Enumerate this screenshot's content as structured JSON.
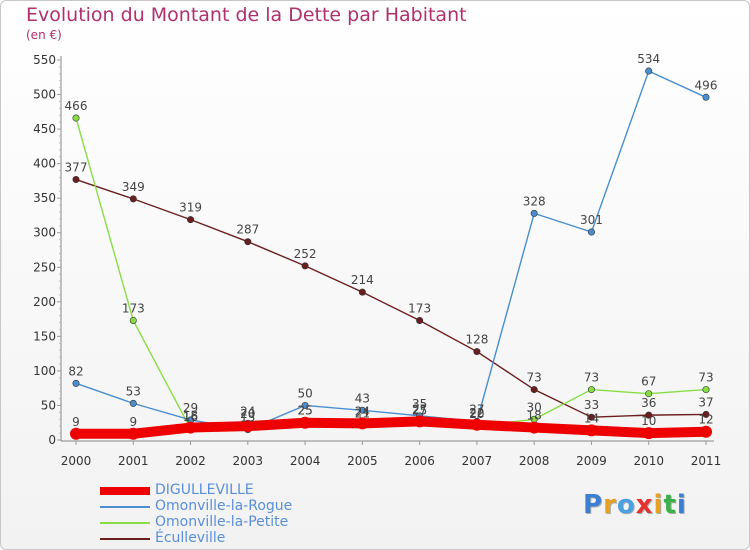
{
  "chart_data": {
    "type": "line",
    "title": "Evolution du Montant de la Dette par Habitant",
    "subtitle": "(en €)",
    "xlabel": "",
    "ylabel": "",
    "ylim": [
      0,
      550
    ],
    "yticks": [
      "0",
      "50",
      "100",
      "150",
      "200",
      "250",
      "300",
      "350",
      "400",
      "450",
      "500",
      "550"
    ],
    "categories": [
      "2000",
      "2001",
      "2002",
      "2003",
      "2004",
      "2005",
      "2006",
      "2007",
      "2008",
      "2009",
      "2010",
      "2011"
    ],
    "grid": false,
    "legend_position": "bottom-left",
    "series": [
      {
        "name": "DIGULLEVILLE",
        "color": "#ee0000",
        "values": [
          9,
          9,
          18,
          20,
          25,
          24,
          27,
          22,
          18,
          14,
          10,
          12
        ],
        "labels": [
          "9",
          "9",
          "18",
          "20",
          "25",
          "24",
          "27",
          "22",
          "18",
          "14",
          "10",
          "12"
        ]
      },
      {
        "name": "Omonville-la-Rogue",
        "color": "#4a8ed0",
        "values": [
          82,
          53,
          29,
          15,
          50,
          43,
          35,
          27,
          328,
          301,
          534,
          496
        ],
        "labels": [
          "82",
          "53",
          "29",
          "15",
          "50",
          "43",
          "35",
          "27",
          "328",
          "301",
          "534",
          "496"
        ]
      },
      {
        "name": "Omonville-la-Petite",
        "color": "#88dd44",
        "values": [
          466,
          173,
          16,
          24,
          25,
          21,
          25,
          20,
          30,
          73,
          67,
          73
        ],
        "labels": [
          "466",
          "173",
          "16",
          "24",
          "25",
          "21",
          "25",
          "20",
          "30",
          "73",
          "67",
          "73"
        ]
      },
      {
        "name": "Éculleville",
        "color": "#6b1e1e",
        "values": [
          377,
          349,
          319,
          287,
          252,
          214,
          173,
          128,
          73,
          33,
          36,
          37
        ],
        "labels": [
          "377",
          "349",
          "319",
          "287",
          "252",
          "214",
          "173",
          "128",
          "73",
          "33",
          "36",
          "37"
        ]
      }
    ]
  },
  "logo": {
    "text": "Proxiti"
  }
}
